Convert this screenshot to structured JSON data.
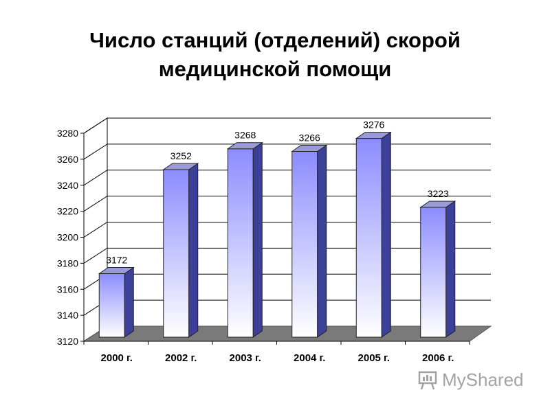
{
  "chart_data": {
    "type": "bar",
    "title": "Число станций (отделений) скорой медицинской помощи",
    "categories": [
      "2000 г.",
      "2002 г.",
      "2003 г.",
      "2004 г.",
      "2005 г.",
      "2006 г."
    ],
    "values": [
      3172,
      3252,
      3268,
      3266,
      3276,
      3223
    ],
    "ylim": [
      3120,
      3280
    ],
    "yticks": [
      3120,
      3140,
      3160,
      3180,
      3200,
      3220,
      3240,
      3260,
      3280
    ],
    "grid": true,
    "data_labels": true,
    "three_d": true
  },
  "title_lines": [
    "Число станций (отделений) скорой",
    "медицинской помощи"
  ],
  "colors": {
    "bar_top": "#8c8cff",
    "bar_bottom": "#ffffff",
    "bar_side": "#3d4099",
    "floor": "#7a7a7a",
    "grid": "#000000"
  },
  "watermark": {
    "text": "MyShared",
    "icon": "presentation-board-icon"
  }
}
